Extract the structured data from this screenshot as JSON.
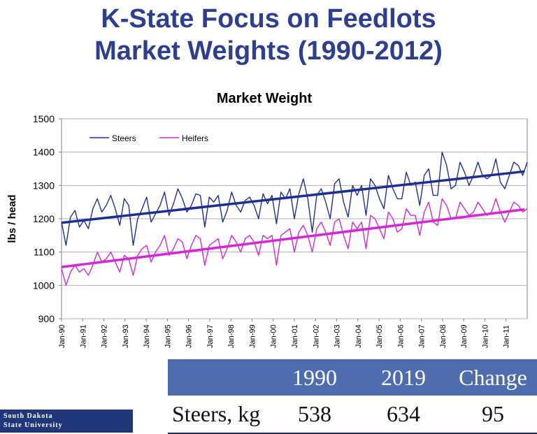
{
  "slide": {
    "title_line1": "K-State Focus on Feedlots",
    "title_line2": "Market Weights (1990-2012)",
    "logo_line1": "South Dakota",
    "logo_line2": "State University"
  },
  "chart_data": {
    "type": "line",
    "title": "Market Weight",
    "xlabel": "",
    "ylabel": "lbs / head",
    "ylim": [
      900,
      1500
    ],
    "yticks": [
      900,
      1000,
      1100,
      1200,
      1300,
      1400,
      1500
    ],
    "xticks": [
      "Jan-90",
      "Jan-91",
      "Jan-92",
      "Jan-93",
      "Jan-94",
      "Jan-95",
      "Jan-96",
      "Jan-97",
      "Jan-98",
      "Jan-99",
      "Jan-00",
      "Jan-01",
      "Jan-02",
      "Jan-03",
      "Jan-04",
      "Jan-05",
      "Jan-06",
      "Jan-07",
      "Jan-08",
      "Jan-09",
      "Jan-10",
      "Jan-11"
    ],
    "grid": "horizontal",
    "legend_position": "top-left",
    "x_range": [
      "Jan-90",
      "Dec-11"
    ],
    "series": [
      {
        "name": "Steers",
        "color": "#1f2f8f",
        "x_start": "Jan-90",
        "step": "quarter",
        "values": [
          1190,
          1120,
          1205,
          1225,
          1175,
          1195,
          1170,
          1230,
          1260,
          1220,
          1240,
          1270,
          1230,
          1180,
          1260,
          1240,
          1120,
          1200,
          1230,
          1265,
          1190,
          1215,
          1240,
          1280,
          1210,
          1245,
          1290,
          1260,
          1220,
          1240,
          1275,
          1270,
          1175,
          1265,
          1250,
          1270,
          1190,
          1225,
          1280,
          1240,
          1220,
          1255,
          1265,
          1240,
          1200,
          1275,
          1245,
          1270,
          1185,
          1280,
          1260,
          1290,
          1200,
          1275,
          1320,
          1260,
          1160,
          1270,
          1290,
          1250,
          1200,
          1305,
          1320,
          1250,
          1205,
          1300,
          1270,
          1300,
          1210,
          1320,
          1300,
          1260,
          1230,
          1330,
          1290,
          1260,
          1260,
          1340,
          1300,
          1310,
          1240,
          1330,
          1350,
          1270,
          1270,
          1400,
          1360,
          1290,
          1300,
          1370,
          1340,
          1300,
          1330,
          1370,
          1330,
          1320,
          1330,
          1380,
          1310,
          1290,
          1330,
          1370,
          1360,
          1330,
          1370
        ]
      },
      {
        "name": "Heifers",
        "color": "#d428d4",
        "x_start": "Jan-90",
        "step": "quarter",
        "values": [
          1050,
          1000,
          1040,
          1060,
          1040,
          1050,
          1030,
          1060,
          1100,
          1070,
          1080,
          1100,
          1070,
          1040,
          1090,
          1080,
          1030,
          1090,
          1110,
          1120,
          1070,
          1100,
          1120,
          1150,
          1090,
          1110,
          1140,
          1130,
          1080,
          1120,
          1150,
          1140,
          1060,
          1120,
          1130,
          1140,
          1080,
          1110,
          1150,
          1130,
          1100,
          1140,
          1150,
          1130,
          1090,
          1150,
          1140,
          1150,
          1060,
          1150,
          1160,
          1170,
          1100,
          1160,
          1180,
          1150,
          1100,
          1170,
          1190,
          1160,
          1120,
          1190,
          1200,
          1150,
          1110,
          1190,
          1170,
          1190,
          1110,
          1210,
          1200,
          1170,
          1140,
          1220,
          1200,
          1160,
          1170,
          1230,
          1210,
          1210,
          1150,
          1220,
          1250,
          1190,
          1180,
          1260,
          1240,
          1200,
          1200,
          1250,
          1230,
          1210,
          1220,
          1250,
          1230,
          1210,
          1220,
          1260,
          1220,
          1190,
          1220,
          1250,
          1240,
          1220,
          1230
        ]
      },
      {
        "name": "",
        "color": "#1f2f8f",
        "role": "trend",
        "x": [
          "Jan-90",
          "Dec-11"
        ],
        "values": [
          1188,
          1342
        ]
      },
      {
        "name": "",
        "color": "#d428d4",
        "role": "trend",
        "x": [
          "Jan-90",
          "Dec-11"
        ],
        "values": [
          1055,
          1228
        ]
      }
    ]
  },
  "table": {
    "headers": [
      "",
      "1990",
      "2019",
      "Change"
    ],
    "rows": [
      [
        "Steers, kg",
        "538",
        "634",
        "95"
      ]
    ],
    "header_color": "#4f6cae"
  }
}
